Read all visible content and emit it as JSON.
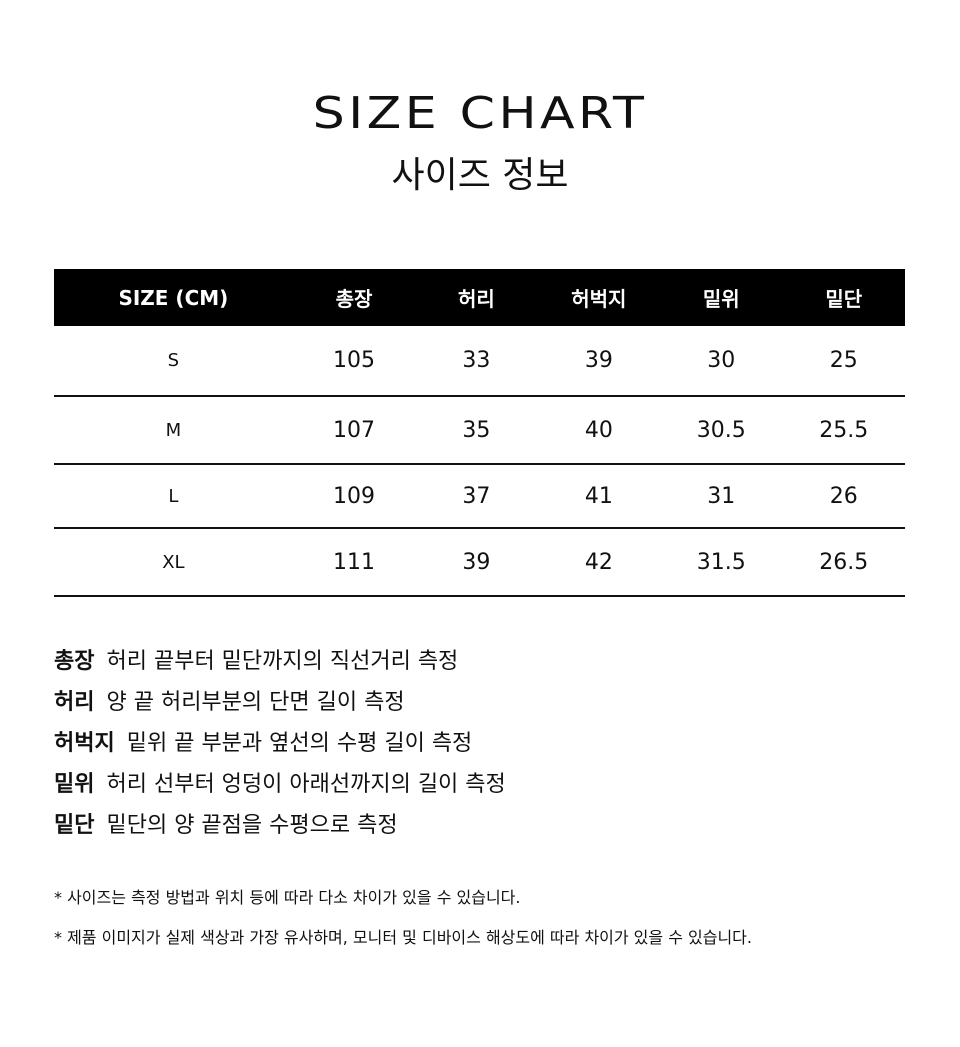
{
  "header": {
    "title": "SIZE CHART",
    "subtitle": "사이즈 정보"
  },
  "table": {
    "columns": [
      "SIZE (CM)",
      "총장",
      "허리",
      "허벅지",
      "밑위",
      "밑단"
    ],
    "rows": [
      [
        "S",
        "105",
        "33",
        "39",
        "30",
        "25"
      ],
      [
        "M",
        "107",
        "35",
        "40",
        "30.5",
        "25.5"
      ],
      [
        "L",
        "109",
        "37",
        "41",
        "31",
        "26"
      ],
      [
        "XL",
        "111",
        "39",
        "42",
        "31.5",
        "26.5"
      ]
    ]
  },
  "legend": [
    {
      "term": "총장",
      "desc": "허리 끝부터 밑단까지의 직선거리 측정"
    },
    {
      "term": "허리",
      "desc": "양 끝 허리부분의 단면 길이 측정"
    },
    {
      "term": "허벅지",
      "desc": "밑위 끝 부분과 옆선의 수평 길이 측정"
    },
    {
      "term": "밑위",
      "desc": "허리 선부터 엉덩이 아래선까지의 길이 측정"
    },
    {
      "term": "밑단",
      "desc": "밑단의 양 끝점을 수평으로 측정"
    }
  ],
  "notes": [
    "* 사이즈는 측정 방법과 위치 등에 따라 다소 차이가 있을 수 있습니다.",
    "* 제품 이미지가 실제 색상과 가장 유사하며, 모니터 및 디바이스 해상도에 따라 차이가 있을 수 있습니다."
  ]
}
